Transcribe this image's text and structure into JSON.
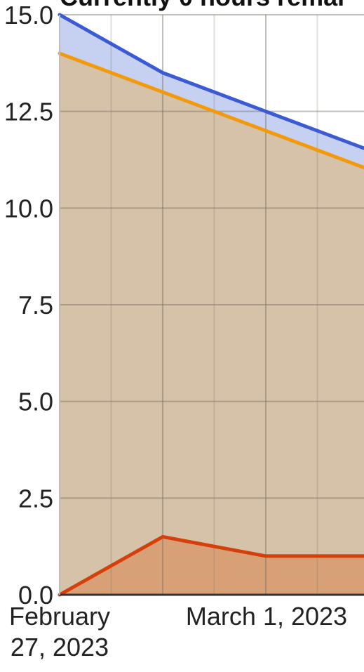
{
  "chart_data": {
    "type": "area",
    "title": "Currently 0 hours remai",
    "x_tick_labels": [
      {
        "lines": [
          "February",
          "27, 2023"
        ]
      },
      {
        "lines": [
          "March 1, 2023"
        ]
      }
    ],
    "x": [
      0,
      1,
      2,
      3
    ],
    "y_ticks": [
      0.0,
      2.5,
      5.0,
      7.5,
      10.0,
      12.5,
      15.0
    ],
    "y_tick_labels": [
      "0.0",
      "2.5",
      "5.0",
      "7.5",
      "10.0",
      "12.5",
      "15.0"
    ],
    "ylim": [
      0,
      15
    ],
    "grid": true,
    "series": [
      {
        "values": [
          15.0,
          13.5,
          12.5,
          11.5
        ],
        "color": "#3b5bd6",
        "fill": "#c6d0f0"
      },
      {
        "values": [
          14.0,
          13.0,
          12.0,
          11.0
        ],
        "color": "#f29a0c",
        "fill": "#d6c2a8"
      },
      {
        "values": [
          0.0,
          1.5,
          1.0,
          1.0
        ],
        "color": "#d4400c",
        "fill": "#d8a076"
      }
    ]
  }
}
